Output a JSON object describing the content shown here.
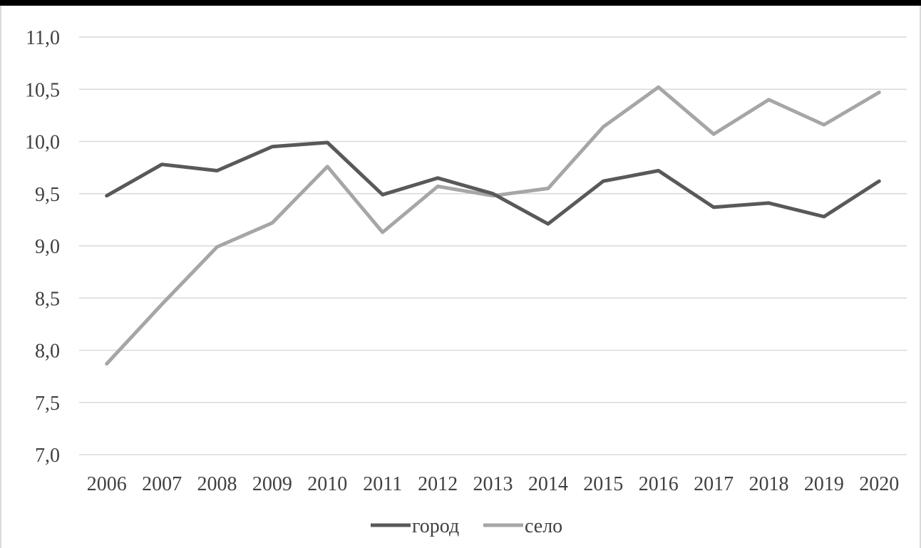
{
  "chart_data": {
    "type": "line",
    "title": "",
    "xlabel": "",
    "ylabel": "",
    "categories": [
      "2006",
      "2007",
      "2008",
      "2009",
      "2010",
      "2011",
      "2012",
      "2013",
      "2014",
      "2015",
      "2016",
      "2017",
      "2018",
      "2019",
      "2020"
    ],
    "y_ticks": [
      "7,0",
      "7,5",
      "8,0",
      "8,5",
      "9,0",
      "9,5",
      "10,0",
      "10,5",
      "11,0"
    ],
    "ylim": [
      7.0,
      11.0
    ],
    "grid": true,
    "legend_position": "bottom",
    "series": [
      {
        "name": "город",
        "color": "#595959",
        "values": [
          9.48,
          9.78,
          9.72,
          9.95,
          9.99,
          9.49,
          9.65,
          9.5,
          9.21,
          9.62,
          9.72,
          9.37,
          9.41,
          9.28,
          9.62
        ]
      },
      {
        "name": "село",
        "color": "#a6a6a6",
        "values": [
          7.87,
          8.44,
          8.99,
          9.22,
          9.76,
          9.13,
          9.57,
          9.48,
          9.55,
          10.14,
          10.52,
          10.07,
          10.4,
          10.16,
          10.47
        ]
      }
    ]
  }
}
